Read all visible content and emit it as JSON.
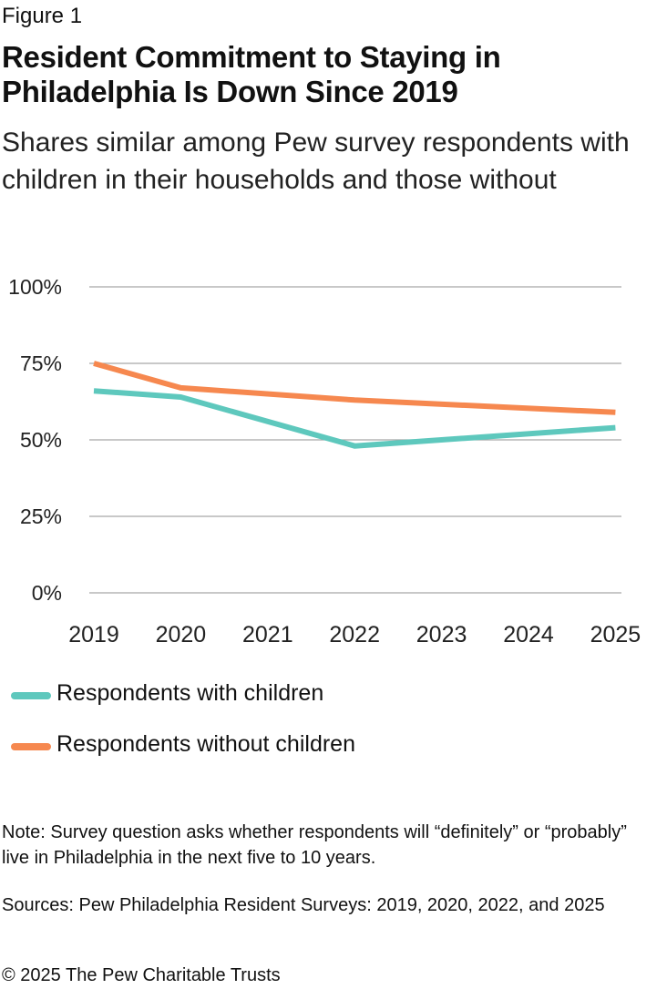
{
  "figure_label": "Figure 1",
  "title": "Resident Commitment to Staying in Philadelphia Is Down Since 2019",
  "subtitle": "Shares similar among Pew survey respondents with children in their households and those without",
  "chart_data": {
    "type": "line",
    "x": [
      2019,
      2020,
      2021,
      2022,
      2023,
      2024,
      2025
    ],
    "yticks": [
      "0%",
      "25%",
      "50%",
      "75%",
      "100%"
    ],
    "ylim": [
      0,
      100
    ],
    "grid": true,
    "legend_position": "bottom-left",
    "series": [
      {
        "name": "Respondents with children",
        "color": "#5ec8bd",
        "x": [
          2019,
          2020,
          2022,
          2025
        ],
        "values": [
          66,
          64,
          48,
          54
        ]
      },
      {
        "name": "Respondents without children",
        "color": "#f6884f",
        "x": [
          2019,
          2020,
          2022,
          2025
        ],
        "values": [
          75,
          67,
          63,
          59
        ]
      }
    ]
  },
  "note": "Note: Survey question asks whether respondents will “definitely” or “probably” live in Philadelphia in the next five to 10 years.",
  "sources": "Sources: Pew Philadelphia Resident Surveys: 2019, 2020, 2022, and 2025",
  "copyright": "© 2025 The Pew Charitable Trusts"
}
